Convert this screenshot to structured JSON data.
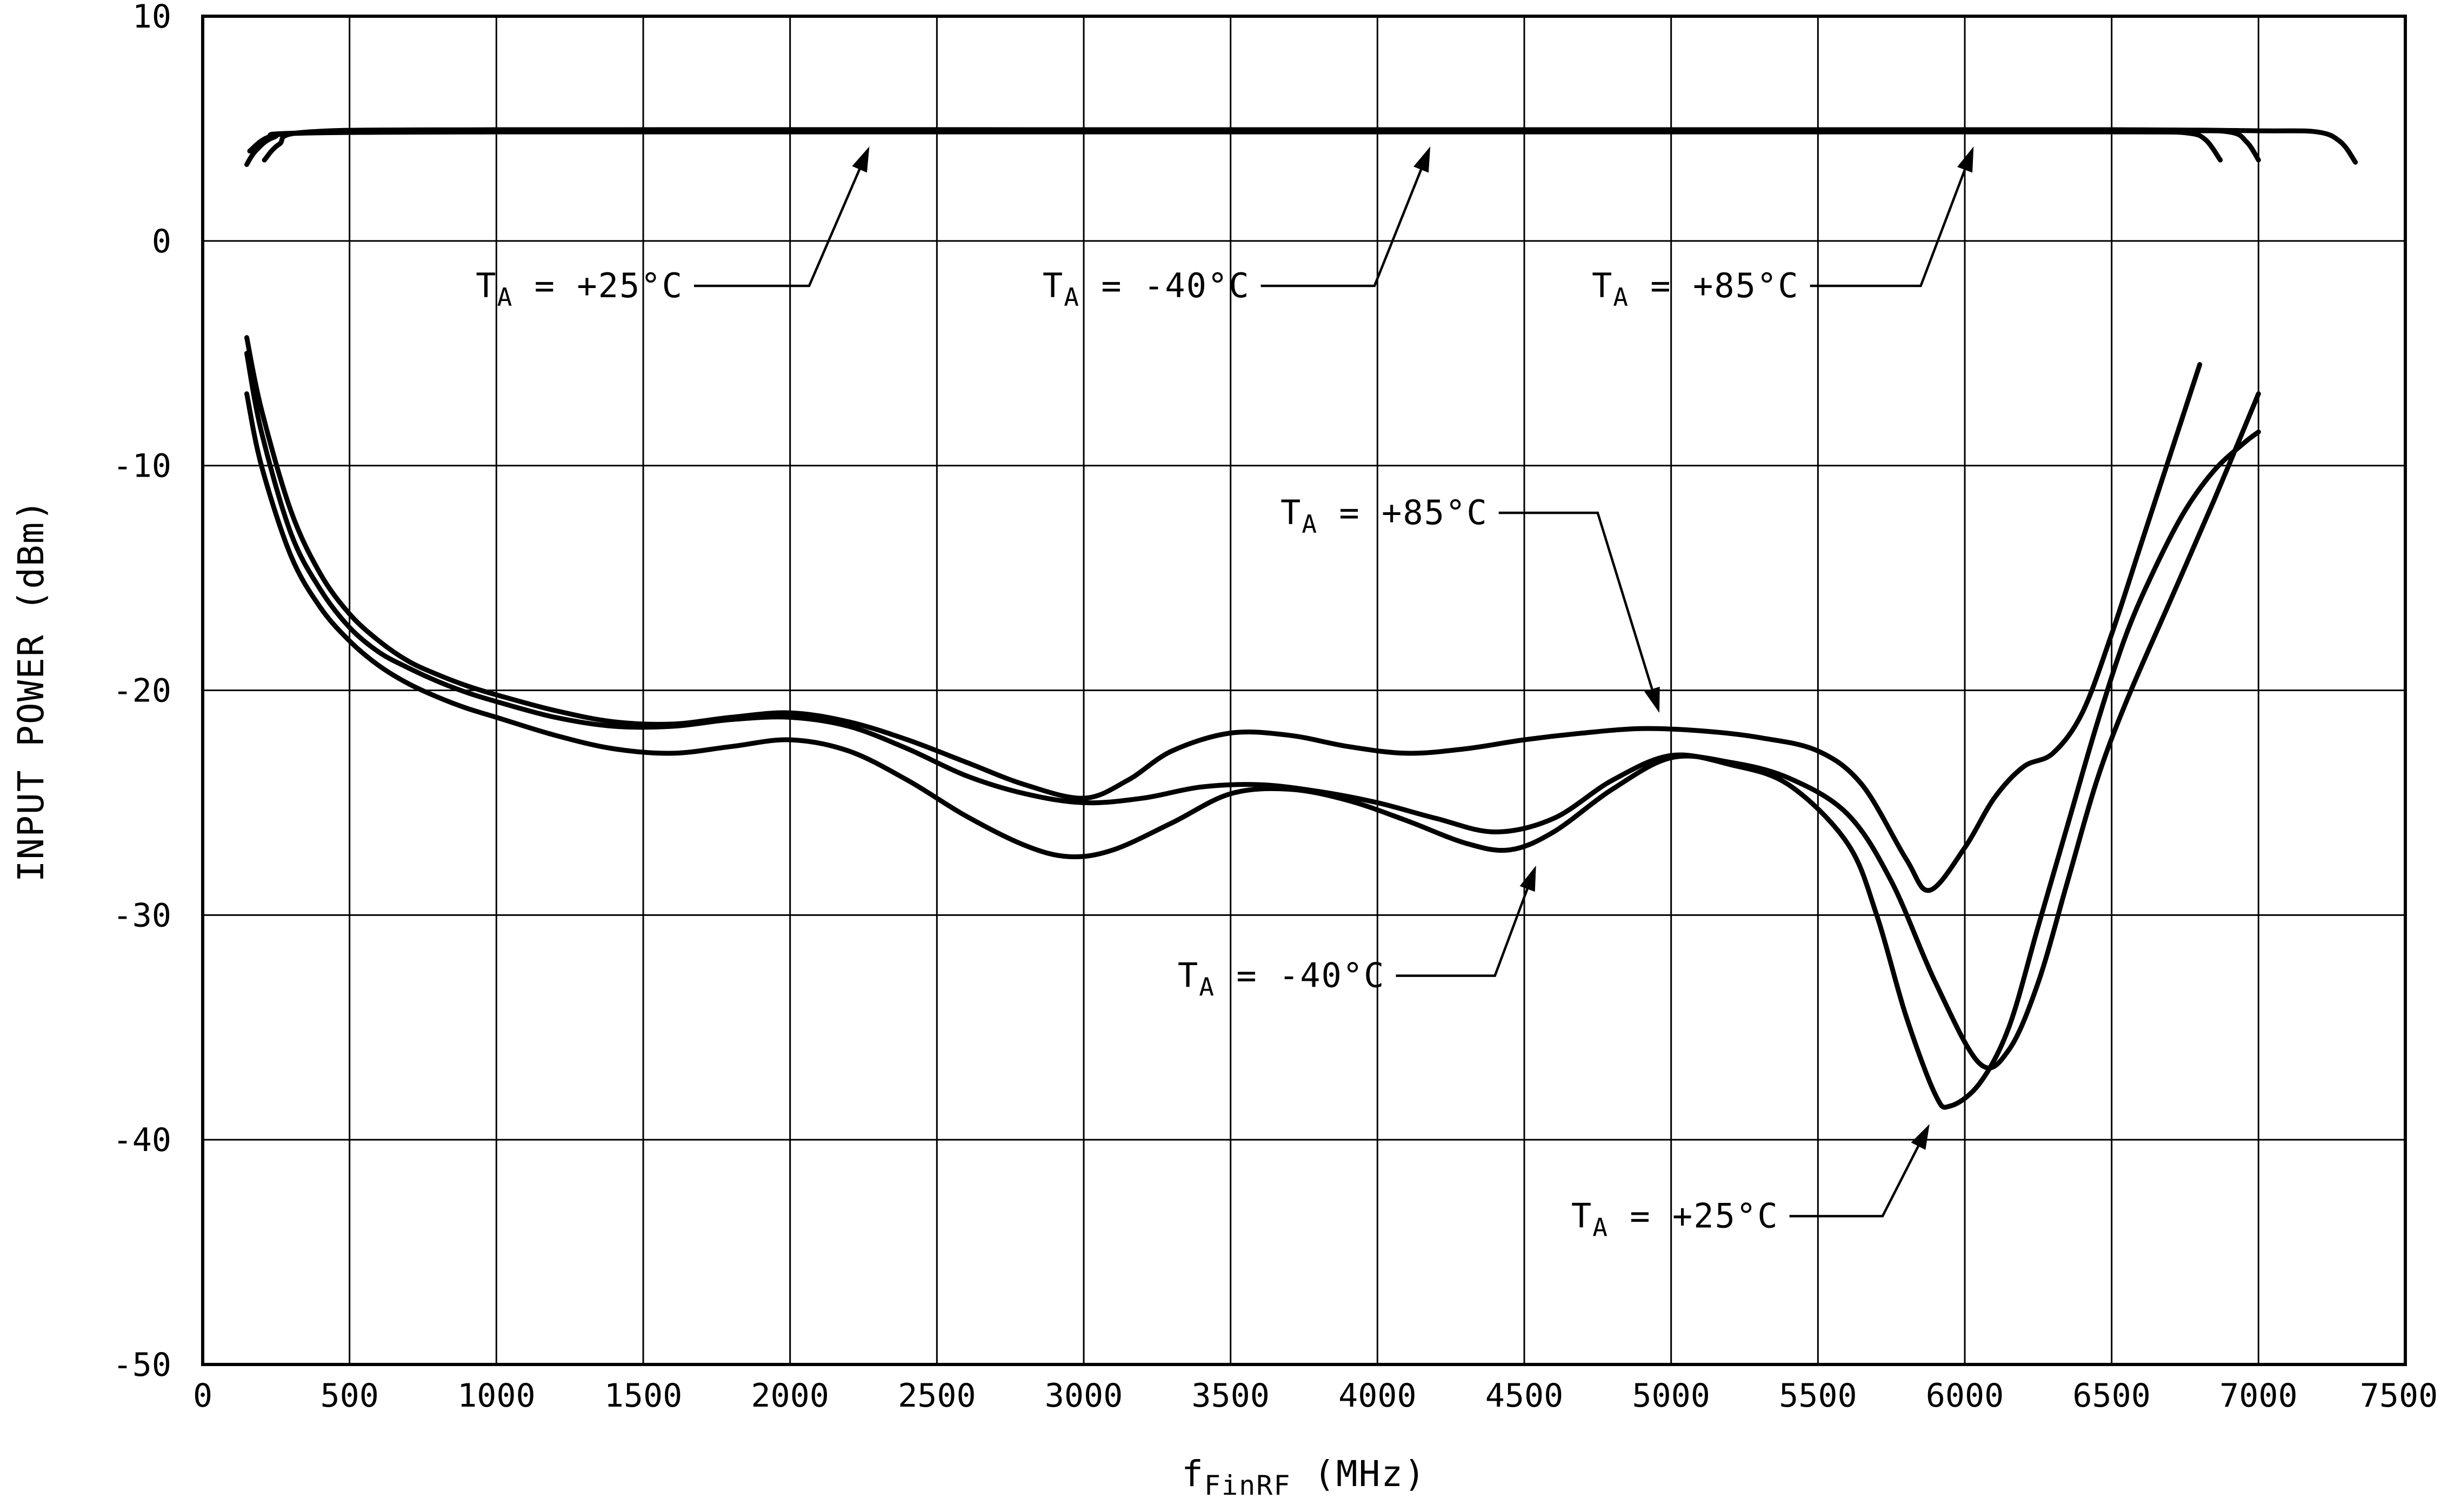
{
  "colors": {
    "foreground": "#000000",
    "background": "#ffffff"
  },
  "chart_data": {
    "type": "line",
    "title": "",
    "xlabel_parts": {
      "pre": "f",
      "sub": "FinRF",
      "rest": " (MHz)"
    },
    "ylabel": "INPUT POWER (dBm)",
    "xlim": [
      0,
      7500
    ],
    "ylim": [
      -50,
      10
    ],
    "xticks": [
      0,
      500,
      1000,
      1500,
      2000,
      2500,
      3000,
      3500,
      4000,
      4500,
      5000,
      5500,
      6000,
      6500,
      7000,
      7500
    ],
    "yticks": [
      10,
      0,
      -10,
      -20,
      -30,
      -40,
      -50
    ],
    "grid": true,
    "legend": "none",
    "series": [
      {
        "name": "upper-max-input-ta-plus25",
        "temperature": "TA = +25°C",
        "band": "upper",
        "points": [
          [
            150,
            3.4
          ],
          [
            180,
            4.0
          ],
          [
            240,
            4.6
          ],
          [
            350,
            4.8
          ],
          [
            1000,
            4.85
          ],
          [
            2000,
            4.85
          ],
          [
            3000,
            4.85
          ],
          [
            4000,
            4.85
          ],
          [
            5000,
            4.85
          ],
          [
            6000,
            4.85
          ],
          [
            6600,
            4.85
          ],
          [
            6760,
            4.8
          ],
          [
            6820,
            4.5
          ],
          [
            6870,
            3.6
          ]
        ]
      },
      {
        "name": "upper-max-input-ta-minus40",
        "temperature": "TA = -40°C",
        "band": "upper",
        "points": [
          [
            160,
            4.0
          ],
          [
            220,
            4.6
          ],
          [
            320,
            4.8
          ],
          [
            1000,
            4.9
          ],
          [
            2000,
            4.9
          ],
          [
            3000,
            4.9
          ],
          [
            4000,
            4.9
          ],
          [
            5000,
            4.9
          ],
          [
            6000,
            4.9
          ],
          [
            6700,
            4.9
          ],
          [
            6900,
            4.85
          ],
          [
            6960,
            4.4
          ],
          [
            7000,
            3.6
          ]
        ]
      },
      {
        "name": "upper-max-input-ta-plus85",
        "temperature": "TA = +85°C",
        "band": "upper",
        "points": [
          [
            210,
            3.6
          ],
          [
            260,
            4.3
          ],
          [
            360,
            4.85
          ],
          [
            1000,
            4.95
          ],
          [
            3000,
            4.95
          ],
          [
            5000,
            4.95
          ],
          [
            6500,
            4.95
          ],
          [
            7000,
            4.9
          ],
          [
            7200,
            4.85
          ],
          [
            7280,
            4.4
          ],
          [
            7330,
            3.5
          ]
        ]
      },
      {
        "name": "lower-min-input-ta-plus25",
        "temperature": "TA = +25°C",
        "band": "lower",
        "points": [
          [
            150,
            -5.0
          ],
          [
            200,
            -8.5
          ],
          [
            300,
            -13.0
          ],
          [
            400,
            -15.5
          ],
          [
            500,
            -17.2
          ],
          [
            600,
            -18.3
          ],
          [
            700,
            -19.0
          ],
          [
            800,
            -19.6
          ],
          [
            900,
            -20.1
          ],
          [
            1000,
            -20.5
          ],
          [
            1200,
            -21.2
          ],
          [
            1400,
            -21.6
          ],
          [
            1600,
            -21.6
          ],
          [
            1800,
            -21.3
          ],
          [
            2000,
            -21.2
          ],
          [
            2200,
            -21.6
          ],
          [
            2400,
            -22.6
          ],
          [
            2600,
            -23.8
          ],
          [
            2800,
            -24.6
          ],
          [
            3000,
            -25.0
          ],
          [
            3200,
            -24.8
          ],
          [
            3400,
            -24.3
          ],
          [
            3600,
            -24.2
          ],
          [
            3800,
            -24.5
          ],
          [
            4000,
            -25.0
          ],
          [
            4200,
            -25.7
          ],
          [
            4400,
            -26.3
          ],
          [
            4600,
            -25.7
          ],
          [
            4800,
            -24.0
          ],
          [
            5000,
            -22.9
          ],
          [
            5200,
            -23.3
          ],
          [
            5400,
            -24.2
          ],
          [
            5600,
            -26.8
          ],
          [
            5700,
            -30.0
          ],
          [
            5800,
            -34.5
          ],
          [
            5900,
            -38.0
          ],
          [
            5950,
            -38.5
          ],
          [
            6050,
            -37.5
          ],
          [
            6150,
            -35.0
          ],
          [
            6250,
            -30.5
          ],
          [
            6350,
            -26.0
          ],
          [
            6450,
            -21.5
          ],
          [
            6550,
            -17.5
          ],
          [
            6650,
            -14.5
          ],
          [
            6750,
            -12.0
          ],
          [
            6850,
            -10.2
          ],
          [
            6950,
            -9.0
          ],
          [
            7000,
            -8.5
          ]
        ]
      },
      {
        "name": "lower-min-input-ta-minus40",
        "temperature": "TA = -40°C",
        "band": "lower",
        "points": [
          [
            150,
            -6.8
          ],
          [
            200,
            -10.0
          ],
          [
            300,
            -14.0
          ],
          [
            400,
            -16.3
          ],
          [
            500,
            -17.8
          ],
          [
            600,
            -18.9
          ],
          [
            700,
            -19.7
          ],
          [
            800,
            -20.3
          ],
          [
            900,
            -20.8
          ],
          [
            1000,
            -21.2
          ],
          [
            1200,
            -22.0
          ],
          [
            1400,
            -22.6
          ],
          [
            1600,
            -22.8
          ],
          [
            1800,
            -22.5
          ],
          [
            2000,
            -22.2
          ],
          [
            2200,
            -22.7
          ],
          [
            2400,
            -24.0
          ],
          [
            2600,
            -25.6
          ],
          [
            2800,
            -26.9
          ],
          [
            2950,
            -27.4
          ],
          [
            3100,
            -27.1
          ],
          [
            3300,
            -25.9
          ],
          [
            3500,
            -24.6
          ],
          [
            3700,
            -24.4
          ],
          [
            3900,
            -24.9
          ],
          [
            4100,
            -25.8
          ],
          [
            4300,
            -26.8
          ],
          [
            4450,
            -27.1
          ],
          [
            4600,
            -26.3
          ],
          [
            4800,
            -24.4
          ],
          [
            5000,
            -23.0
          ],
          [
            5200,
            -23.2
          ],
          [
            5400,
            -23.9
          ],
          [
            5600,
            -25.5
          ],
          [
            5750,
            -28.5
          ],
          [
            5900,
            -33.0
          ],
          [
            6050,
            -36.6
          ],
          [
            6150,
            -36.0
          ],
          [
            6250,
            -33.0
          ],
          [
            6350,
            -28.5
          ],
          [
            6450,
            -24.0
          ],
          [
            6550,
            -20.5
          ],
          [
            6700,
            -16.0
          ],
          [
            6850,
            -11.5
          ],
          [
            7000,
            -6.8
          ]
        ]
      },
      {
        "name": "lower-min-input-ta-plus85",
        "temperature": "TA = +85°C",
        "band": "lower",
        "points": [
          [
            150,
            -4.3
          ],
          [
            200,
            -7.5
          ],
          [
            300,
            -12.0
          ],
          [
            400,
            -14.8
          ],
          [
            500,
            -16.6
          ],
          [
            600,
            -17.8
          ],
          [
            700,
            -18.7
          ],
          [
            800,
            -19.3
          ],
          [
            900,
            -19.8
          ],
          [
            1000,
            -20.2
          ],
          [
            1200,
            -20.9
          ],
          [
            1400,
            -21.4
          ],
          [
            1600,
            -21.5
          ],
          [
            1800,
            -21.2
          ],
          [
            2000,
            -21.0
          ],
          [
            2200,
            -21.4
          ],
          [
            2400,
            -22.2
          ],
          [
            2600,
            -23.2
          ],
          [
            2800,
            -24.2
          ],
          [
            3000,
            -24.8
          ],
          [
            3150,
            -24.0
          ],
          [
            3300,
            -22.7
          ],
          [
            3500,
            -21.9
          ],
          [
            3700,
            -22.0
          ],
          [
            3900,
            -22.5
          ],
          [
            4100,
            -22.8
          ],
          [
            4300,
            -22.6
          ],
          [
            4500,
            -22.2
          ],
          [
            4700,
            -21.9
          ],
          [
            4900,
            -21.7
          ],
          [
            5100,
            -21.8
          ],
          [
            5300,
            -22.1
          ],
          [
            5500,
            -22.7
          ],
          [
            5650,
            -24.2
          ],
          [
            5800,
            -27.5
          ],
          [
            5880,
            -28.9
          ],
          [
            6000,
            -27.0
          ],
          [
            6100,
            -24.8
          ],
          [
            6200,
            -23.4
          ],
          [
            6300,
            -22.8
          ],
          [
            6400,
            -21.0
          ],
          [
            6500,
            -17.5
          ],
          [
            6600,
            -13.5
          ],
          [
            6700,
            -9.5
          ],
          [
            6800,
            -5.5
          ]
        ]
      }
    ],
    "annotations": [
      {
        "name": "upper-ta-plus25-label",
        "pre": "T",
        "sub": "A",
        "rest": " = +25°C",
        "target": "upper",
        "text_x": 930,
        "text_y": -2.0,
        "elbow_x": 2065,
        "elbow_y": -2.0,
        "tip_x": 2270,
        "tip_y": 4.2
      },
      {
        "name": "upper-ta-minus40-label",
        "pre": "T",
        "sub": "A",
        "rest": " = -40°C",
        "target": "upper",
        "text_x": 2860,
        "text_y": -2.0,
        "elbow_x": 3990,
        "elbow_y": -2.0,
        "tip_x": 4180,
        "tip_y": 4.2
      },
      {
        "name": "upper-ta-plus85-label",
        "pre": "T",
        "sub": "A",
        "rest": " = +85°C",
        "target": "upper",
        "text_x": 4730,
        "text_y": -2.0,
        "elbow_x": 5850,
        "elbow_y": -2.0,
        "tip_x": 6030,
        "tip_y": 4.2
      },
      {
        "name": "lower-ta-plus85-label",
        "pre": "T",
        "sub": "A",
        "rest": " = +85°C",
        "target": "lower",
        "text_x": 3670,
        "text_y": -12.1,
        "elbow_x": 4750,
        "elbow_y": -12.1,
        "tip_x": 4960,
        "tip_y": -21.0
      },
      {
        "name": "lower-ta-minus40-label",
        "pre": "T",
        "sub": "A",
        "rest": " = -40°C",
        "target": "lower",
        "text_x": 3320,
        "text_y": -32.7,
        "elbow_x": 4400,
        "elbow_y": -32.7,
        "tip_x": 4540,
        "tip_y": -27.8
      },
      {
        "name": "lower-ta-plus25-label",
        "pre": "T",
        "sub": "A",
        "rest": " = +25°C",
        "target": "lower",
        "text_x": 4660,
        "text_y": -43.4,
        "elbow_x": 5720,
        "elbow_y": -43.4,
        "tip_x": 5880,
        "tip_y": -39.3
      }
    ]
  }
}
